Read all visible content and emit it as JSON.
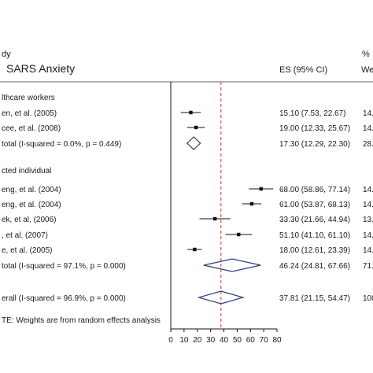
{
  "chart_data": {
    "type": "forest",
    "header": {
      "study_col": "dy",
      "title": "SARS Anxiety",
      "es_col": "ES (95% CI)",
      "pct_col": "%",
      "weight_col": "We"
    },
    "groups": [
      {
        "name": "lthcare workers",
        "studies": [
          {
            "label": "en, et al. (2005)",
            "es": 15.1,
            "lo": 7.53,
            "hi": 22.67,
            "es_text": "15.10 (7.53, 22.67)",
            "wt_text": "14."
          },
          {
            "label": "cee, et al. (2008)",
            "es": 19.0,
            "lo": 12.33,
            "hi": 25.67,
            "es_text": "19.00 (12.33, 25.67)",
            "wt_text": "14."
          }
        ],
        "subtotal": {
          "label": "total  (I-squared = 0.0%, p = 0.449)",
          "es": 17.3,
          "lo": 12.29,
          "hi": 22.3,
          "es_text": "17.30 (12.29, 22.30)",
          "wt_text": "28."
        }
      },
      {
        "name": "cted individual",
        "studies": [
          {
            "label": "eng, et al. (2004)",
            "es": 68.0,
            "lo": 58.86,
            "hi": 77.14,
            "es_text": "68.00 (58.86, 77.14)",
            "wt_text": "14."
          },
          {
            "label": "eng, et al. (2004)",
            "es": 61.0,
            "lo": 53.87,
            "hi": 68.13,
            "es_text": "61.00 (53.87, 68.13)",
            "wt_text": "14."
          },
          {
            "label": "ek, et al, (2006)",
            "es": 33.3,
            "lo": 21.66,
            "hi": 44.94,
            "es_text": "33.30 (21.66, 44.94)",
            "wt_text": "13."
          },
          {
            "label": ", et al. (2007)",
            "es": 51.1,
            "lo": 41.1,
            "hi": 61.1,
            "es_text": "51.10 (41.10, 61.10)",
            "wt_text": "14."
          },
          {
            "label": "e, et al. (2005)",
            "es": 18.0,
            "lo": 12.61,
            "hi": 23.39,
            "es_text": "18.00 (12.61, 23.39)",
            "wt_text": "14."
          }
        ],
        "subtotal": {
          "label": "total  (I-squared = 97.1%, p = 0.000)",
          "es": 46.24,
          "lo": 24.81,
          "hi": 67.66,
          "es_text": "46.24 (24.81, 67.66)",
          "wt_text": "71."
        }
      }
    ],
    "overall": {
      "label": "erall  (I-squared = 96.9%, p = 0.000)",
      "es": 37.81,
      "lo": 21.15,
      "hi": 54.47,
      "es_text": "37.81 (21.15, 54.47)",
      "wt_text": "100"
    },
    "note": "TE: Weights are from random effects analysis",
    "xaxis": {
      "ticks": [
        0,
        10,
        20,
        30,
        40,
        50,
        60,
        70,
        80
      ],
      "tick_labels": [
        "0",
        "10",
        "20",
        "30",
        "40",
        "50",
        "60",
        "70",
        "80"
      ],
      "range": [
        0,
        80
      ]
    },
    "reference_line": 37.81,
    "colors": {
      "ref_line": "#c0392b",
      "diamond": "#2c3e7a",
      "text": "#1a1a1a"
    }
  }
}
